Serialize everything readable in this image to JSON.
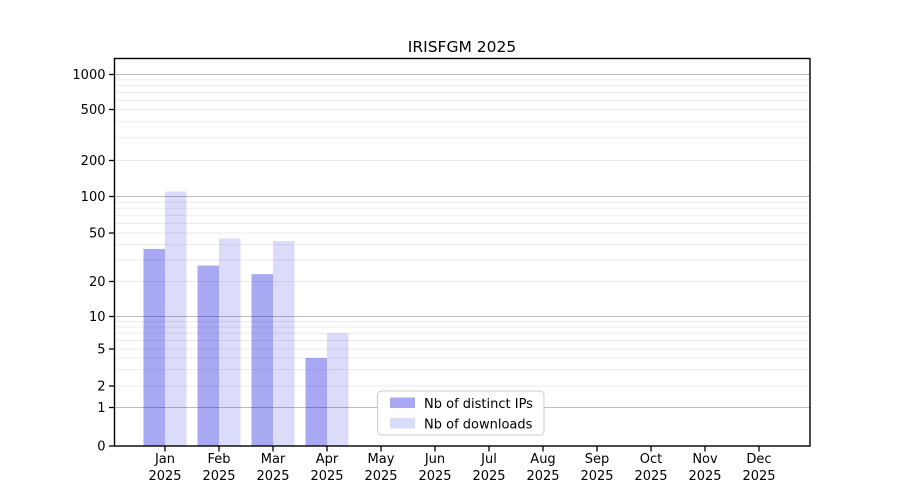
{
  "title": "IRISFGM 2025",
  "legend": {
    "items": [
      {
        "label": "Nb of distinct IPs",
        "key": "distinct_ips"
      },
      {
        "label": "Nb of downloads",
        "key": "downloads"
      }
    ]
  },
  "colors": {
    "distinct_ips": "rgba(10,10,222,0.35)",
    "downloads": "rgba(10,10,222,0.145)",
    "grid_major": "#bcbcbc",
    "grid_minor": "#ebebeb",
    "axis_line": "#000000",
    "text": "#000000",
    "legend_border": "#cccccc",
    "legend_background": "#ffffff",
    "background": "#ffffff"
  },
  "chart_data": {
    "type": "bar",
    "title": "IRISFGM 2025",
    "categories": [
      "Jan 2025",
      "Feb 2025",
      "Mar 2025",
      "Apr 2025",
      "May 2025",
      "Jun 2025",
      "Jul 2025",
      "Aug 2025",
      "Sep 2025",
      "Oct 2025",
      "Nov 2025",
      "Dec 2025"
    ],
    "series": [
      {
        "name": "Nb of distinct IPs",
        "key": "distinct_ips",
        "values": [
          37,
          27,
          23,
          4,
          0,
          0,
          0,
          0,
          0,
          0,
          0,
          0
        ]
      },
      {
        "name": "Nb of downloads",
        "key": "downloads",
        "values": [
          110,
          45,
          43,
          7,
          0,
          0,
          0,
          0,
          0,
          0,
          0,
          0
        ]
      }
    ],
    "xlabel": "",
    "ylabel": "",
    "yscale": "symlog",
    "yticks": [
      0,
      1,
      2,
      5,
      10,
      20,
      50,
      100,
      200,
      500,
      1000
    ],
    "ylim": [
      0,
      1350
    ],
    "grid": "on",
    "legend_position": "lower center"
  }
}
